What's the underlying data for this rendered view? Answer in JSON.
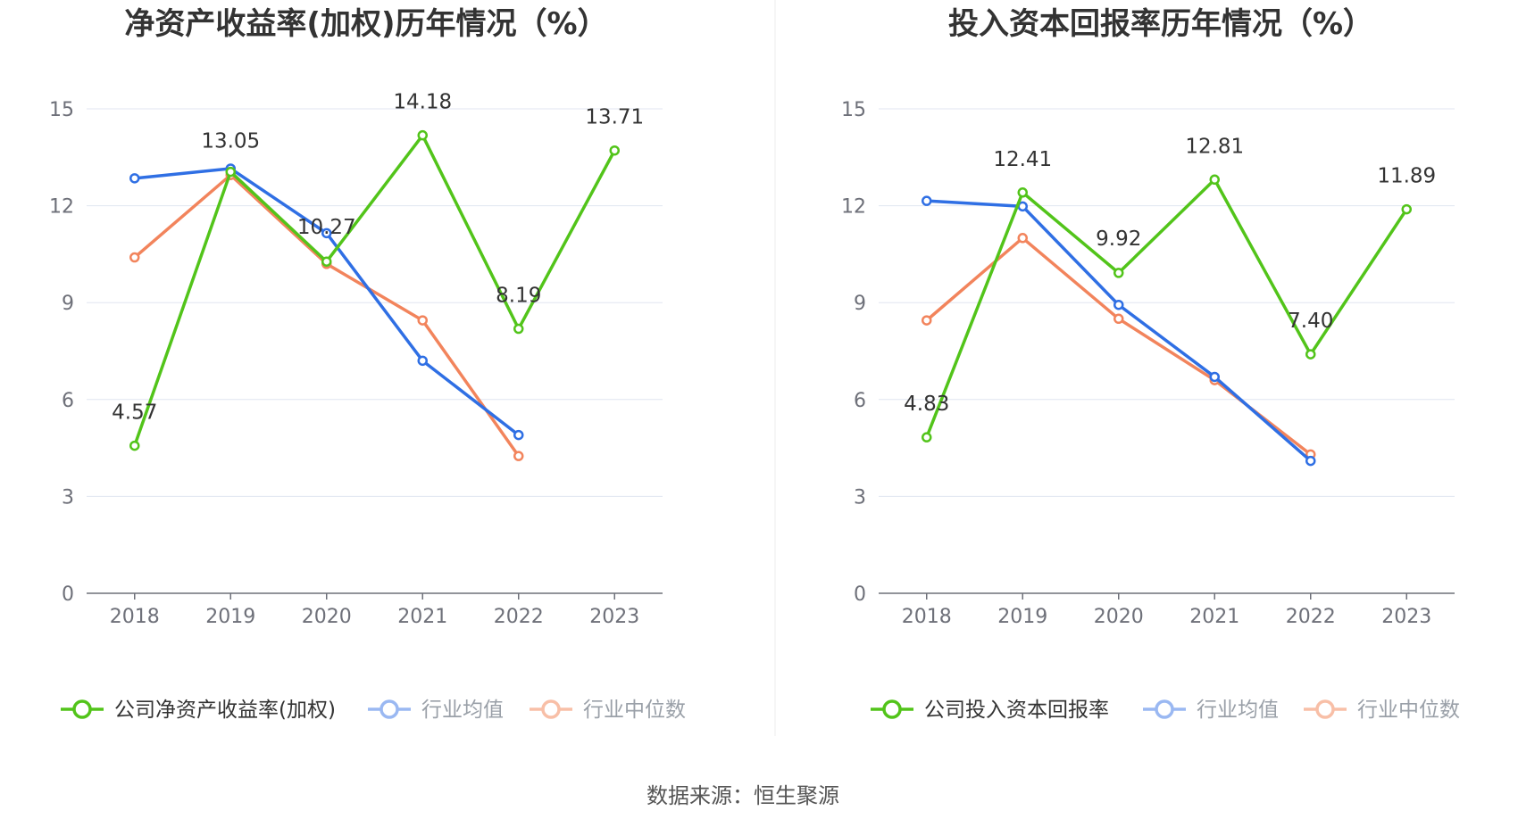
{
  "chart_data": [
    {
      "type": "line",
      "title": "净资产收益率(加权)历年情况（%）",
      "categories": [
        "2018",
        "2019",
        "2020",
        "2021",
        "2022",
        "2023"
      ],
      "ylim": [
        0,
        15
      ],
      "yticks": [
        "0",
        "3",
        "6",
        "9",
        "12",
        "15"
      ],
      "series": [
        {
          "name": "公司净资产收益率(加权)",
          "color": "#52c41a",
          "values": [
            4.57,
            13.05,
            10.27,
            14.18,
            8.19,
            13.71
          ],
          "labels": [
            "4.57",
            "13.05",
            "10.27",
            "14.18",
            "8.19",
            "13.71"
          ]
        },
        {
          "name": "行业均值",
          "color": "#2f6fe4",
          "values": [
            12.85,
            13.15,
            11.15,
            7.2,
            4.9,
            null
          ]
        },
        {
          "name": "行业中位数",
          "color": "#f2845c",
          "values": [
            10.4,
            12.95,
            10.2,
            8.45,
            4.25,
            null
          ]
        }
      ]
    },
    {
      "type": "line",
      "title": "投入资本回报率历年情况（%）",
      "categories": [
        "2018",
        "2019",
        "2020",
        "2021",
        "2022",
        "2023"
      ],
      "ylim": [
        0,
        15
      ],
      "yticks": [
        "0",
        "3",
        "6",
        "9",
        "12",
        "15"
      ],
      "series": [
        {
          "name": "公司投入资本回报率",
          "color": "#52c41a",
          "values": [
            4.83,
            12.41,
            9.92,
            12.81,
            7.4,
            11.89
          ],
          "labels": [
            "4.83",
            "12.41",
            "9.92",
            "12.81",
            "7.40",
            "11.89"
          ]
        },
        {
          "name": "行业均值",
          "color": "#2f6fe4",
          "values": [
            12.15,
            11.98,
            8.93,
            6.7,
            4.1,
            null
          ]
        },
        {
          "name": "行业中位数",
          "color": "#f2845c",
          "values": [
            8.45,
            11.0,
            8.5,
            6.6,
            4.3,
            null
          ]
        }
      ]
    }
  ],
  "source_text": "数据来源：恒生聚源"
}
